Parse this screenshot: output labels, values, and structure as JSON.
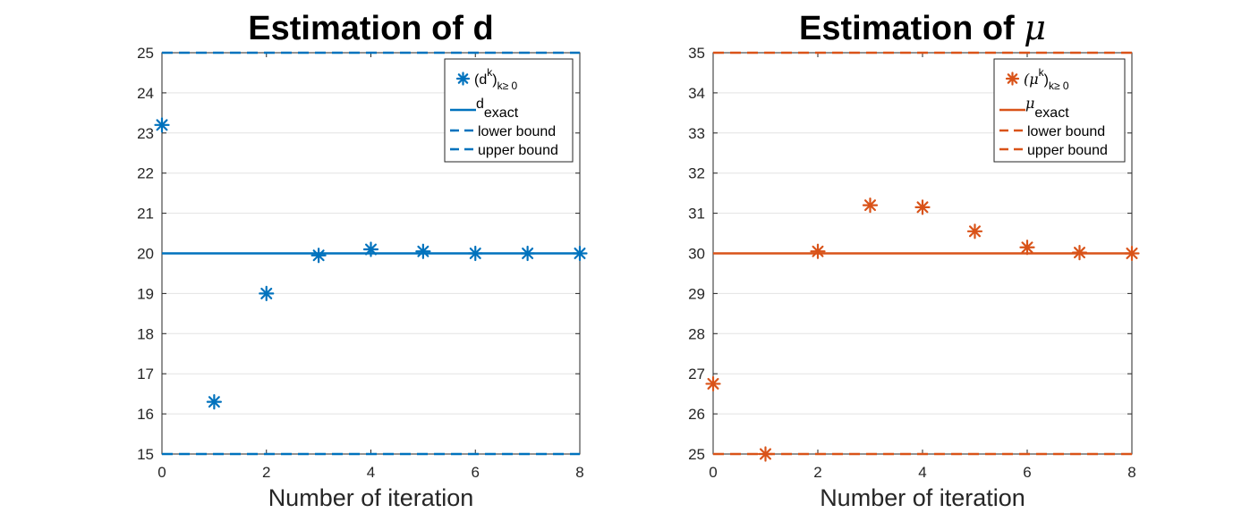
{
  "chart_data": [
    {
      "type": "scatter",
      "title": "Estimation of d",
      "title_symbol": "",
      "xlabel": "Number of iteration",
      "ylabel": "",
      "xlim": [
        0,
        8
      ],
      "ylim": [
        15,
        25
      ],
      "xticks": [
        "0",
        "2",
        "4",
        "6",
        "8"
      ],
      "yticks": [
        "15",
        "16",
        "17",
        "18",
        "19",
        "20",
        "21",
        "22",
        "23",
        "24",
        "25"
      ],
      "grid": "horizontal",
      "color": "#0072BD",
      "legend_position": "top-right",
      "series": [
        {
          "x": [
            0,
            1,
            2,
            3,
            4,
            5,
            6,
            7,
            8
          ],
          "y": [
            23.2,
            16.3,
            19.0,
            19.95,
            20.1,
            20.05,
            20.0,
            20.0,
            20.0
          ]
        }
      ],
      "exact": 20,
      "lower_bound": 15,
      "upper_bound": 25,
      "legend": {
        "series_base": "(d",
        "series_sup": "k",
        "series_close": ")",
        "series_sub": "k≥ 0",
        "exact_base": "d",
        "exact_sub": "exact",
        "lower": "lower bound",
        "upper": "upper bound"
      }
    },
    {
      "type": "scatter",
      "title": "Estimation of ",
      "title_symbol": "μ",
      "xlabel": "Number of iteration",
      "ylabel": "",
      "xlim": [
        0,
        8
      ],
      "ylim": [
        25,
        35
      ],
      "xticks": [
        "0",
        "2",
        "4",
        "6",
        "8"
      ],
      "yticks": [
        "25",
        "26",
        "27",
        "28",
        "29",
        "30",
        "31",
        "32",
        "33",
        "34",
        "35"
      ],
      "grid": "horizontal",
      "color": "#D95319",
      "legend_position": "top-right",
      "series": [
        {
          "x": [
            0,
            1,
            2,
            3,
            4,
            5,
            6,
            7,
            8
          ],
          "y": [
            26.75,
            25.0,
            30.05,
            31.2,
            31.15,
            30.55,
            30.15,
            30.02,
            30.0
          ]
        }
      ],
      "exact": 30,
      "lower_bound": 25,
      "upper_bound": 35,
      "legend": {
        "series_base": "(μ",
        "series_sup": "k",
        "series_close": ")",
        "series_sub": "k≥ 0",
        "exact_base": "μ",
        "exact_sub": "exact",
        "lower": "lower bound",
        "upper": "upper bound"
      }
    }
  ]
}
